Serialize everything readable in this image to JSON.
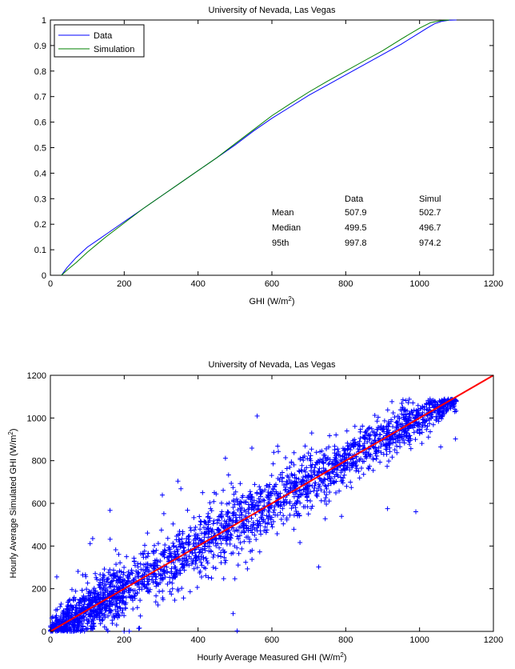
{
  "chart_data": [
    {
      "type": "line",
      "title": "University of Nevada, Las Vegas",
      "xlabel_main": "GHI (W/m",
      "xlabel_sup": "2",
      "xlabel_close": ")",
      "ylabel": "",
      "xlim": [
        0,
        1200
      ],
      "ylim": [
        0,
        1
      ],
      "xticks": [
        "0",
        "200",
        "400",
        "600",
        "800",
        "1000",
        "1200"
      ],
      "yticks": [
        "0",
        "0.1",
        "0.2",
        "0.3",
        "0.4",
        "0.5",
        "0.6",
        "0.7",
        "0.8",
        "0.9",
        "1"
      ],
      "grid": false,
      "legend_position": "top-left",
      "series": [
        {
          "name": "Data",
          "color": "#0000ff",
          "x": [
            30,
            45,
            70,
            100,
            150,
            200,
            250,
            300,
            350,
            400,
            450,
            500,
            550,
            600,
            650,
            700,
            750,
            800,
            850,
            900,
            950,
            1000,
            1020,
            1040,
            1060,
            1080,
            1100
          ],
          "y": [
            0,
            0.03,
            0.07,
            0.11,
            0.16,
            0.21,
            0.26,
            0.31,
            0.36,
            0.41,
            0.46,
            0.51,
            0.565,
            0.615,
            0.66,
            0.705,
            0.745,
            0.785,
            0.825,
            0.865,
            0.905,
            0.95,
            0.968,
            0.985,
            0.995,
            0.999,
            1
          ]
        },
        {
          "name": "Simulation",
          "color": "#008000",
          "x": [
            30,
            45,
            70,
            100,
            150,
            200,
            250,
            300,
            350,
            400,
            450,
            500,
            550,
            600,
            650,
            700,
            750,
            800,
            850,
            900,
            950,
            1000,
            1030,
            1060,
            1080
          ],
          "y": [
            0,
            0.02,
            0.05,
            0.09,
            0.15,
            0.205,
            0.26,
            0.31,
            0.36,
            0.41,
            0.46,
            0.515,
            0.57,
            0.625,
            0.672,
            0.718,
            0.76,
            0.8,
            0.84,
            0.88,
            0.925,
            0.968,
            0.99,
            0.998,
            1
          ]
        }
      ],
      "stats_table": {
        "headers": [
          "",
          "Data",
          "Simul"
        ],
        "rows": [
          [
            "Mean",
            "507.9",
            "502.7"
          ],
          [
            "Median",
            "499.5",
            "496.7"
          ],
          [
            "95th",
            "997.8",
            "974.2"
          ]
        ]
      }
    },
    {
      "type": "scatter",
      "title": "University of Nevada, Las Vegas",
      "xlabel_main": "Hourly Average Measured GHI (W/m",
      "xlabel_sup": "2",
      "xlabel_close": ")",
      "ylabel_main": "Hourly Average Simulated GHI (W/m",
      "ylabel_sup": "2",
      "ylabel_close": ")",
      "xlim": [
        0,
        1200
      ],
      "ylim": [
        0,
        1200
      ],
      "xticks": [
        "0",
        "200",
        "400",
        "600",
        "800",
        "1000",
        "1200"
      ],
      "yticks": [
        "0",
        "200",
        "400",
        "600",
        "800",
        "1000",
        "1200"
      ],
      "grid": false,
      "marker": "+",
      "marker_color": "#0000ff",
      "fit_line": {
        "color": "#ff0000",
        "x": [
          0,
          1200
        ],
        "y": [
          0,
          1200
        ]
      },
      "point_count": 2600,
      "points": {
        "x_range": [
          0,
          1100
        ],
        "scatter_sd_near_zero": 40,
        "scatter_sd_max": 75,
        "clip_below": 0,
        "clip_above": 1090
      }
    }
  ]
}
